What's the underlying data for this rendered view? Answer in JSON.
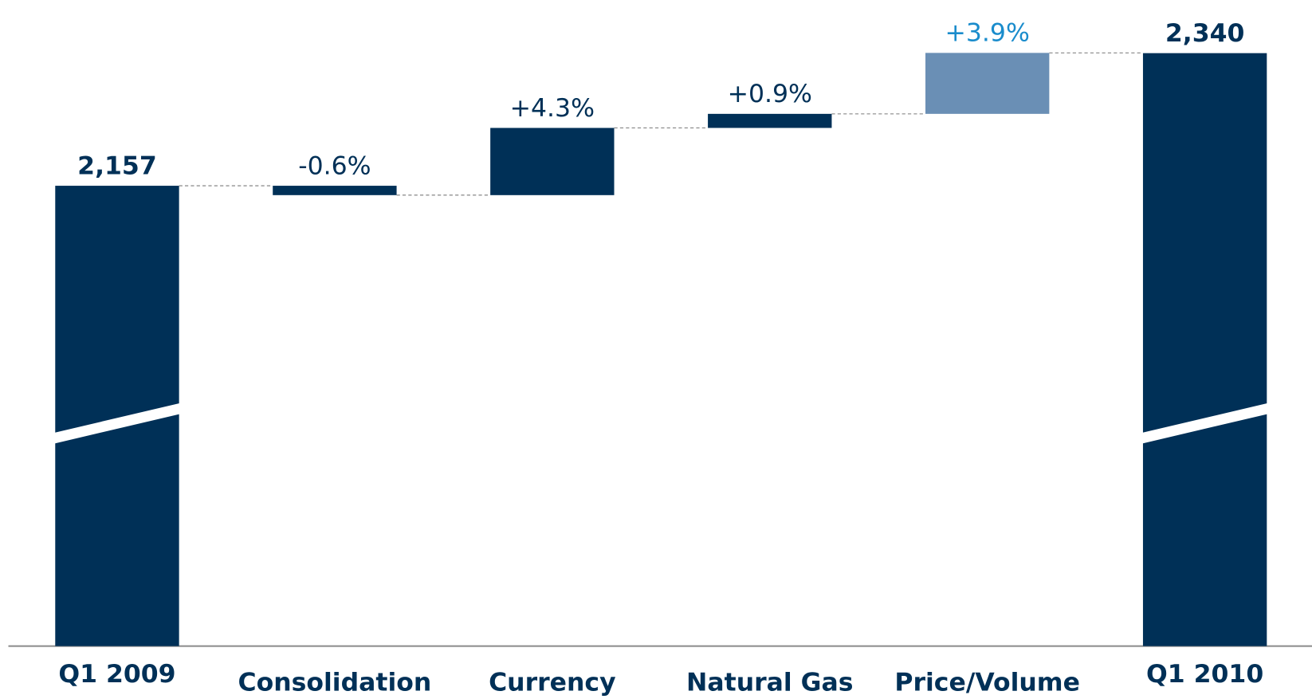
{
  "chart_data": {
    "type": "waterfall",
    "categories": [
      "Q1 2009",
      "Consolidation",
      "Currency",
      "Natural Gas",
      "Price/Volume",
      "Q1 2010"
    ],
    "measure": [
      "total",
      "relative",
      "relative",
      "relative",
      "relative",
      "total"
    ],
    "values": [
      2157,
      -0.6,
      4.3,
      0.9,
      3.9,
      2340
    ],
    "value_labels": [
      "2,157",
      "-0.6%",
      "+4.3%",
      "+0.9%",
      "+3.9%",
      "2,340"
    ],
    "colors": [
      "#003057",
      "#003057",
      "#003057",
      "#003057",
      "#6a8fb5",
      "#003057"
    ],
    "label_colors": [
      "#003057",
      "#003057",
      "#003057",
      "#003057",
      "#1a8ccc",
      "#003057"
    ],
    "axis_break": true
  }
}
